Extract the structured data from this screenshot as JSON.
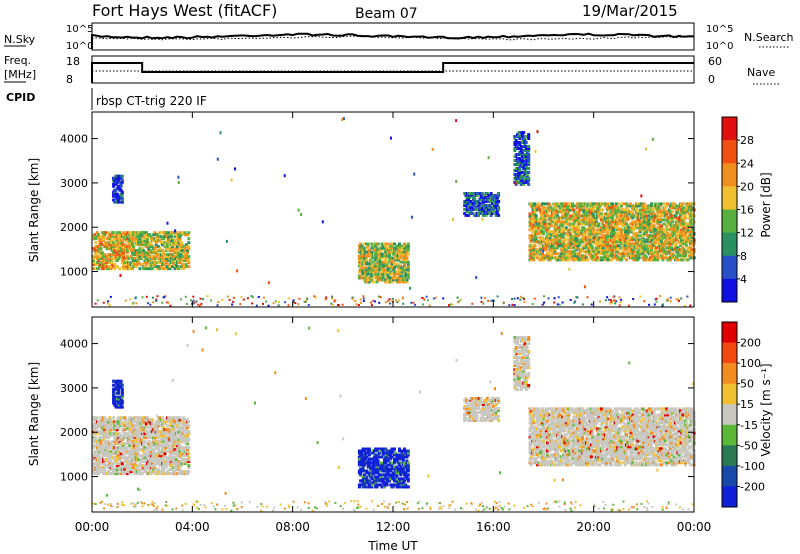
{
  "header": {
    "title": "Fort Hays West (fitACF)",
    "beam": "Beam 07",
    "date": "19/Mar/2015"
  },
  "top_panels": {
    "nsky": {
      "label": "N.Sky",
      "ticks": [
        "10^5",
        "10^0"
      ]
    },
    "nsearch": {
      "label": "N.Search",
      "ticks": [
        "10^5",
        "10^0"
      ]
    },
    "freq": {
      "label": "Freq.",
      "unit": "[MHz]",
      "ticks": [
        "18",
        "8"
      ]
    },
    "nave": {
      "label": "Nave",
      "ticks": [
        "60",
        "0"
      ]
    },
    "cpid": {
      "label": "CPID",
      "program": "rbsp CT-trig 220 IF"
    }
  },
  "colors": {
    "power": [
      "#1010e0",
      "#2850c8",
      "#2a9060",
      "#58b040",
      "#f0c030",
      "#f09020",
      "#f05010",
      "#e01010"
    ],
    "velocity": [
      "#1020d8",
      "#1848a8",
      "#2a7a55",
      "#5cb838",
      "#c8c8c0",
      "#f0c030",
      "#f08c20",
      "#f04810",
      "#e00000"
    ]
  },
  "chart_data": [
    {
      "type": "heatmap",
      "name": "power",
      "ylabel": "Slant Range [km]",
      "ylim": [
        200,
        4600
      ],
      "yticks": [
        "1000",
        "2000",
        "3000",
        "4000"
      ],
      "xlim": [
        0,
        24
      ],
      "colorbar": {
        "label": "Power [dB]",
        "range": [
          0,
          32
        ],
        "ticks": [
          "4",
          "8",
          "12",
          "16",
          "20",
          "24",
          "28"
        ]
      },
      "regions": [
        {
          "t": [
            0.0,
            1.4
          ],
          "r": [
            1100,
            1950
          ],
          "level": 0.6
        },
        {
          "t": [
            1.4,
            3.8
          ],
          "r": [
            1100,
            1950
          ],
          "level": 0.52
        },
        {
          "t": [
            0.8,
            1.2
          ],
          "r": [
            2600,
            3200
          ],
          "level": 0.15
        },
        {
          "t": [
            10.6,
            12.6
          ],
          "r": [
            800,
            1700
          ],
          "level": 0.5
        },
        {
          "t": [
            17.4,
            24.0
          ],
          "r": [
            1300,
            2600
          ],
          "level": 0.55
        },
        {
          "t": [
            16.8,
            17.4
          ],
          "r": [
            3000,
            4200
          ],
          "level": 0.18
        },
        {
          "t": [
            14.8,
            16.2
          ],
          "r": [
            2300,
            2800
          ],
          "level": 0.2
        }
      ]
    },
    {
      "type": "heatmap",
      "name": "velocity",
      "xlabel": "Time UT",
      "ylabel": "Slant Range [km]",
      "ylim": [
        200,
        4600
      ],
      "yticks": [
        "1000",
        "2000",
        "3000",
        "4000"
      ],
      "xlim": [
        0,
        24
      ],
      "xticks": [
        "00:00",
        "04:00",
        "08:00",
        "12:00",
        "16:00",
        "20:00",
        "00:00"
      ],
      "colorbar": {
        "label": "Velocity [m s⁻¹]",
        "range": [
          -250,
          250
        ],
        "ticks": [
          "200",
          "100",
          "50",
          "15",
          "-15",
          "-50",
          "-100",
          "-200"
        ]
      },
      "regions": [
        {
          "t": [
            0.0,
            3.8
          ],
          "r": [
            1100,
            2400
          ],
          "level": "ground"
        },
        {
          "t": [
            0.8,
            1.2
          ],
          "r": [
            2600,
            3200
          ],
          "level": "high"
        },
        {
          "t": [
            10.6,
            12.6
          ],
          "r": [
            800,
            1700
          ],
          "level": "high"
        },
        {
          "t": [
            17.4,
            24.0
          ],
          "r": [
            1300,
            2600
          ],
          "level": "ground"
        },
        {
          "t": [
            16.8,
            17.4
          ],
          "r": [
            3000,
            4200
          ],
          "level": "ground"
        },
        {
          "t": [
            14.8,
            16.2
          ],
          "r": [
            2300,
            2800
          ],
          "level": "ground"
        }
      ]
    }
  ]
}
